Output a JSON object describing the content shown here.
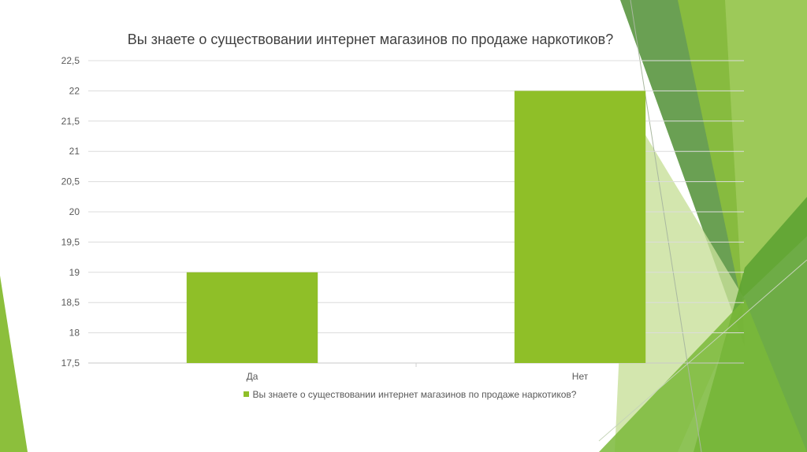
{
  "chart_data": {
    "type": "bar",
    "title": "Вы знаете о существовании интернет магазинов по продаже наркотиков?",
    "categories": [
      "Да",
      "Нет"
    ],
    "series": [
      {
        "name": "Вы знаете о существовании интернет магазинов по продаже наркотиков?",
        "values": [
          19,
          22
        ]
      }
    ],
    "ylim": [
      17.5,
      22.5
    ],
    "yticks": [
      "17,5",
      "18",
      "18,5",
      "19",
      "19,5",
      "20",
      "20,5",
      "21",
      "21,5",
      "22",
      "22,5"
    ],
    "grid": true,
    "legend_position": "bottom",
    "bar_color": "#8fbf28"
  },
  "theme": {
    "accent_dark": "#4e8a27",
    "accent_mid": "#70a832",
    "accent_light": "#9cc84a",
    "accent_pale": "#d6e8b8"
  }
}
